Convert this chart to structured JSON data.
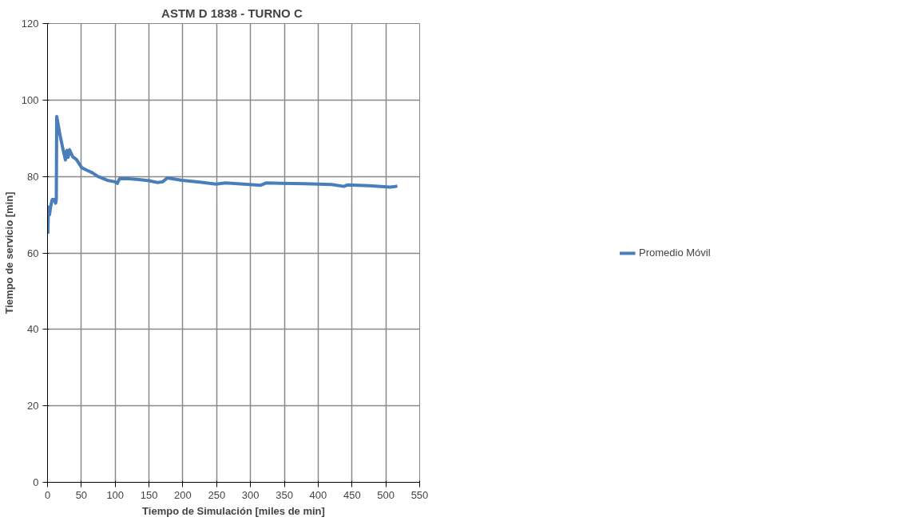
{
  "chart_data": {
    "type": "line",
    "title": "ASTM D 1838 - TURNO  C",
    "xlabel": "Tiempo de Simulación [miles de min]",
    "ylabel": "Tiempo de servicio [min]",
    "xlim": [
      0,
      550
    ],
    "ylim": [
      0,
      120
    ],
    "xticks": [
      0,
      50,
      100,
      150,
      200,
      250,
      300,
      350,
      400,
      450,
      500,
      550
    ],
    "yticks": [
      0,
      20,
      40,
      60,
      80,
      100,
      120
    ],
    "grid": true,
    "legend": "right",
    "marker": "none",
    "line_style": "solid",
    "series": [
      {
        "name": "Promedio Móvil",
        "color": "#4a7ebb",
        "x": [
          0.5,
          1.5,
          3,
          4.5,
          7,
          10,
          12,
          13,
          13.6,
          18.5,
          23,
          26.5,
          28.5,
          30.5,
          32.5,
          37.5,
          42.5,
          50.5,
          58.5,
          66,
          74.4,
          88.4,
          100,
          103.3,
          106.3,
          120,
          135,
          150,
          163,
          170,
          177,
          199,
          225,
          249,
          263,
          290,
          315,
          323,
          345,
          380,
          420,
          438,
          444,
          475,
          506,
          512,
          517
        ],
        "values": [
          65,
          72,
          70,
          72,
          74,
          74,
          73,
          74,
          95.7,
          90.8,
          87,
          84.3,
          86.8,
          85,
          87,
          85.1,
          84.5,
          82.3,
          81.6,
          81,
          80,
          79,
          78.6,
          78.2,
          79.4,
          79.4,
          79.2,
          78.9,
          78.4,
          78.6,
          79.6,
          79,
          78.5,
          78,
          78.3,
          78,
          77.7,
          78.3,
          78.2,
          78.1,
          77.9,
          77.4,
          77.8,
          77.6,
          77.2,
          77.3,
          77.5
        ]
      }
    ]
  }
}
